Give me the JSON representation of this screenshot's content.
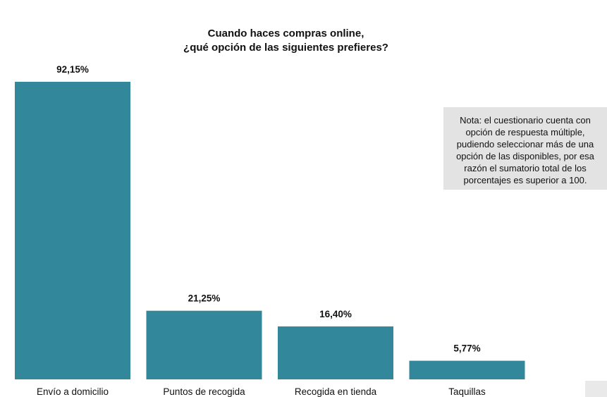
{
  "chart_data": {
    "type": "bar",
    "title": "Cuando haces compras online,\n¿qué opción de las siguientes prefieres?",
    "categories": [
      "Envío a domicilio",
      "Puntos de recogida",
      "Recogida en tienda",
      "Taquillas"
    ],
    "values": [
      92.15,
      21.25,
      16.4,
      5.77
    ],
    "value_labels": [
      "92,15%",
      "21,25%",
      "16,40%",
      "5,77%"
    ],
    "unit": "%",
    "ylim": [
      0,
      100
    ],
    "grid": false,
    "legend": "none",
    "bar_color": "#33879a",
    "note": "Nota: el cuestionario cuenta con opción de respuesta múltiple, pudiendo seleccionar más de una opción de las disponibles, por esa razón el sumatorio total de los porcentajes es superior a 100."
  }
}
